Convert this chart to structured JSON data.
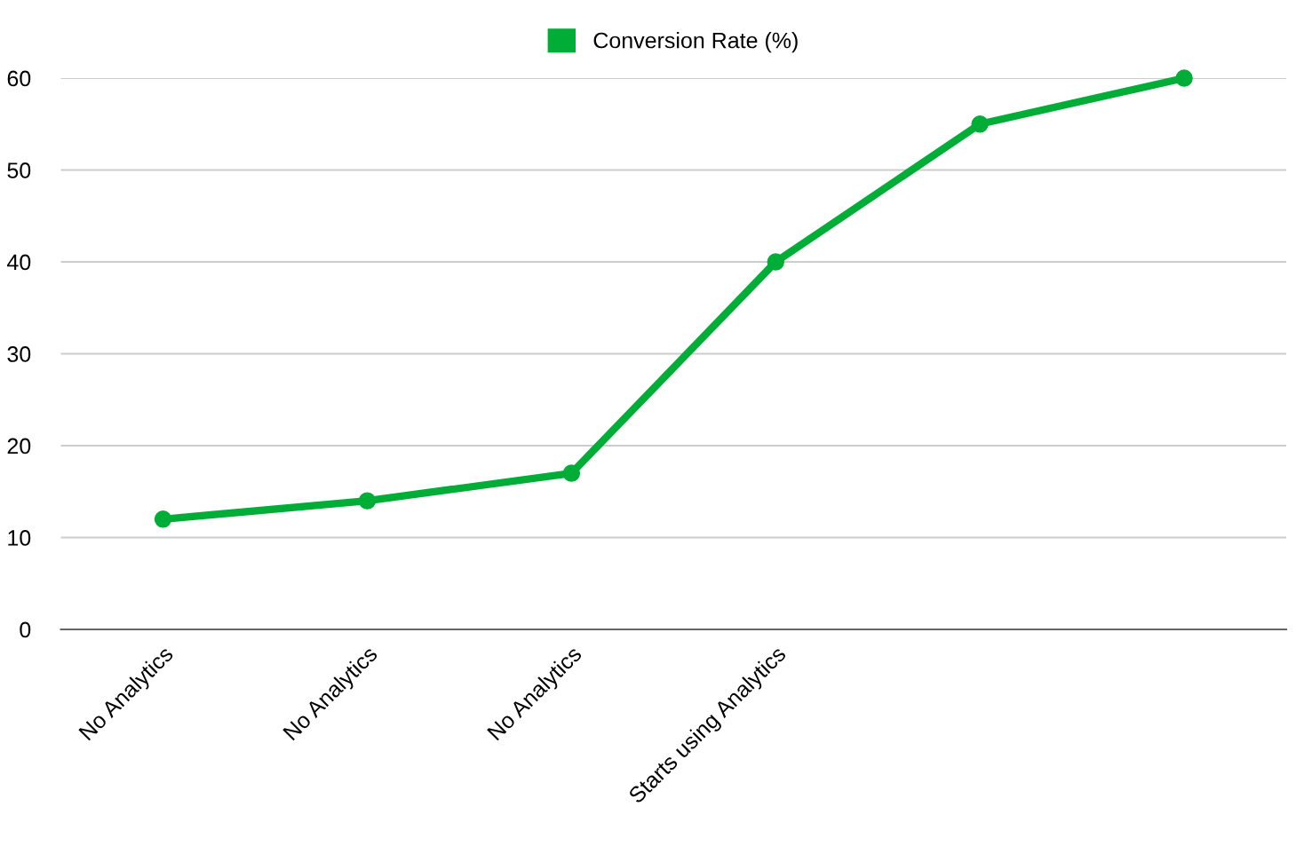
{
  "chart_data": {
    "type": "line",
    "categories": [
      "No Analytics",
      "No Analytics",
      "No Analytics",
      "Starts using Analytics",
      null,
      null
    ],
    "series": [
      {
        "name": "Conversion Rate (%)",
        "color": "#00ad36",
        "values": [
          12,
          14,
          17,
          40,
          55,
          60
        ]
      }
    ],
    "ylim": [
      0,
      60
    ],
    "yticks": [
      0,
      10,
      20,
      30,
      40,
      50,
      60
    ],
    "grid": "y",
    "legend": "top",
    "marker": "circle",
    "line_style": "solid"
  }
}
